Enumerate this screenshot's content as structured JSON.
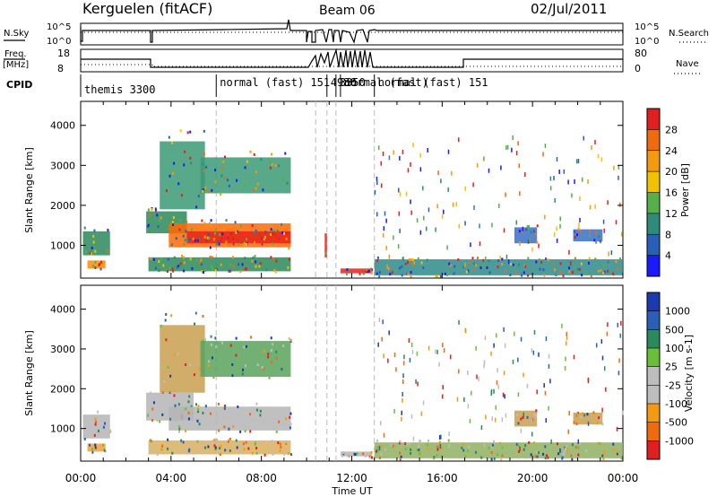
{
  "header": {
    "station": "Kerguelen (fitACF)",
    "beam": "Beam 06",
    "date": "02/Jul/2011"
  },
  "panels": {
    "nsky_label": "N.Sky",
    "nsearch_label": "N.Search",
    "freq_label_1": "Freq.",
    "freq_label_2": "[MHz]",
    "nave_label": "Nave",
    "cpid_label": "CPID",
    "nsky_ticks": [
      "10^5",
      "10^0"
    ],
    "nsearch_ticks": [
      "10^5",
      "10^0"
    ],
    "freq_ticks": [
      "18",
      "8"
    ],
    "nave_ticks": [
      "80",
      "0"
    ]
  },
  "cpid_segments": [
    {
      "label": "themis 3300",
      "start": 0.0
    },
    {
      "label": "normal (fast)  151",
      "start": 6.0
    },
    {
      "label": "4930",
      "start": 10.9
    },
    {
      "label": "3350",
      "start": 11.3
    },
    {
      "label": "normal (fast)",
      "start": 11.5
    },
    {
      "label": "normal (fast)  151",
      "start": 13.0
    }
  ],
  "chart_data": [
    {
      "type": "heatmap",
      "title": "Power",
      "ylabel": "Slant Range [km]",
      "xlabel": "",
      "ylim": [
        180,
        4600
      ],
      "xlim": [
        0,
        24
      ],
      "colorbar": {
        "label": "Power [dB]",
        "ticks": [
          "28",
          "24",
          "20",
          "16",
          "12",
          "8",
          "4"
        ],
        "range": [
          0,
          32
        ]
      },
      "yticks": [
        "1000",
        "2000",
        "3000",
        "4000"
      ],
      "bands": [
        {
          "t0": 0.1,
          "t1": 1.3,
          "r0": 750,
          "r1": 1350,
          "color": "#2a8a5c"
        },
        {
          "t0": 0.3,
          "t1": 1.1,
          "r0": 420,
          "r1": 620,
          "color": "#ff8c00"
        },
        {
          "t0": 2.9,
          "t1": 4.7,
          "r0": 1300,
          "r1": 1850,
          "color": "#2a8a5c"
        },
        {
          "t0": 3.9,
          "t1": 9.3,
          "r0": 950,
          "r1": 1550,
          "color": "#ff6a00"
        },
        {
          "t0": 4.7,
          "t1": 9.3,
          "r0": 1050,
          "r1": 1350,
          "color": "#e8231a"
        },
        {
          "t0": 3.5,
          "t1": 5.5,
          "r0": 1900,
          "r1": 3600,
          "color": "#3a9a76"
        },
        {
          "t0": 5.3,
          "t1": 9.3,
          "r0": 2300,
          "r1": 3200,
          "color": "#3a9a76"
        },
        {
          "t0": 3.0,
          "t1": 9.3,
          "r0": 350,
          "r1": 700,
          "color": "#2a8a5c"
        },
        {
          "t0": 10.8,
          "t1": 10.9,
          "r0": 700,
          "r1": 1300,
          "color": "#e8231a"
        },
        {
          "t0": 11.5,
          "t1": 12.9,
          "r0": 300,
          "r1": 420,
          "color": "#e8231a"
        },
        {
          "t0": 19.2,
          "t1": 20.2,
          "r0": 1050,
          "r1": 1450,
          "color": "#3a6fc2"
        },
        {
          "t0": 21.8,
          "t1": 23.1,
          "r0": 1100,
          "r1": 1400,
          "color": "#3a6fc2"
        },
        {
          "t0": 13.0,
          "t1": 24.0,
          "r0": 250,
          "r1": 650,
          "color": "#2f8a8a"
        }
      ]
    },
    {
      "type": "heatmap",
      "title": "Velocity",
      "ylabel": "Slant Range [km]",
      "xlabel": "Time UT",
      "ylim": [
        180,
        4600
      ],
      "xlim": [
        0,
        24
      ],
      "colorbar": {
        "label": "Velocity  [m s-1]",
        "ticks": [
          "1000",
          "500",
          "100",
          "25",
          "-25",
          "-100",
          "-500",
          "-1000"
        ],
        "range": [
          -1200,
          1200
        ]
      },
      "yticks": [
        "1000",
        "2000",
        "3000",
        "4000"
      ],
      "xticks": [
        "00:00",
        "04:00",
        "08:00",
        "12:00",
        "16:00",
        "20:00",
        "00:00"
      ],
      "bands": [
        {
          "t0": 0.1,
          "t1": 1.3,
          "r0": 750,
          "r1": 1350,
          "color": "#b5b5b5"
        },
        {
          "t0": 0.3,
          "t1": 1.1,
          "r0": 420,
          "r1": 620,
          "color": "#f0a030"
        },
        {
          "t0": 2.9,
          "t1": 5.0,
          "r0": 1200,
          "r1": 1900,
          "color": "#b5b5b5"
        },
        {
          "t0": 3.9,
          "t1": 9.3,
          "r0": 950,
          "r1": 1550,
          "color": "#b5b5b5"
        },
        {
          "t0": 3.5,
          "t1": 5.5,
          "r0": 1900,
          "r1": 3600,
          "color": "#c8a050"
        },
        {
          "t0": 5.3,
          "t1": 9.3,
          "r0": 2300,
          "r1": 3200,
          "color": "#5aa25a"
        },
        {
          "t0": 3.0,
          "t1": 9.3,
          "r0": 350,
          "r1": 700,
          "color": "#d8b060"
        },
        {
          "t0": 11.5,
          "t1": 12.9,
          "r0": 300,
          "r1": 420,
          "color": "#b5b5b5"
        },
        {
          "t0": 19.2,
          "t1": 20.2,
          "r0": 1050,
          "r1": 1450,
          "color": "#c8a050"
        },
        {
          "t0": 21.8,
          "t1": 23.1,
          "r0": 1100,
          "r1": 1400,
          "color": "#c8a050"
        },
        {
          "t0": 13.0,
          "t1": 24.0,
          "r0": 250,
          "r1": 650,
          "color": "#90b060"
        }
      ]
    }
  ],
  "colors": {
    "power_scale": [
      "#1a1aff",
      "#2a5fb8",
      "#2e8b7a",
      "#55b04a",
      "#f2c200",
      "#f49a10",
      "#f06a10",
      "#e02020"
    ],
    "velocity_scale": [
      "#e02020",
      "#f06a10",
      "#f49a10",
      "#bdbdbd",
      "#bdbdbd",
      "#6abf3a",
      "#2a8a5c",
      "#2a5fb8",
      "#1a3ab0"
    ]
  }
}
